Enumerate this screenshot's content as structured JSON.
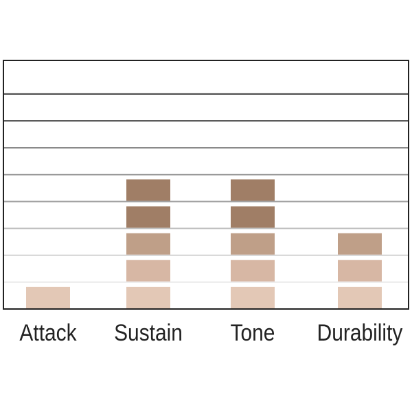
{
  "chart_data": {
    "type": "bar",
    "categories": [
      "Attack",
      "Sustain",
      "Tone",
      "Durability"
    ],
    "values": [
      1,
      5,
      5,
      3
    ],
    "level_colors": [
      "#e3c8b6",
      "#d7b7a4",
      "#bf9f88",
      "#a07e66",
      "#a07e66"
    ],
    "ylim": [
      0,
      9.25
    ],
    "yticks": [
      1,
      2,
      3,
      4,
      5,
      6,
      7,
      8
    ],
    "grid": true
  }
}
